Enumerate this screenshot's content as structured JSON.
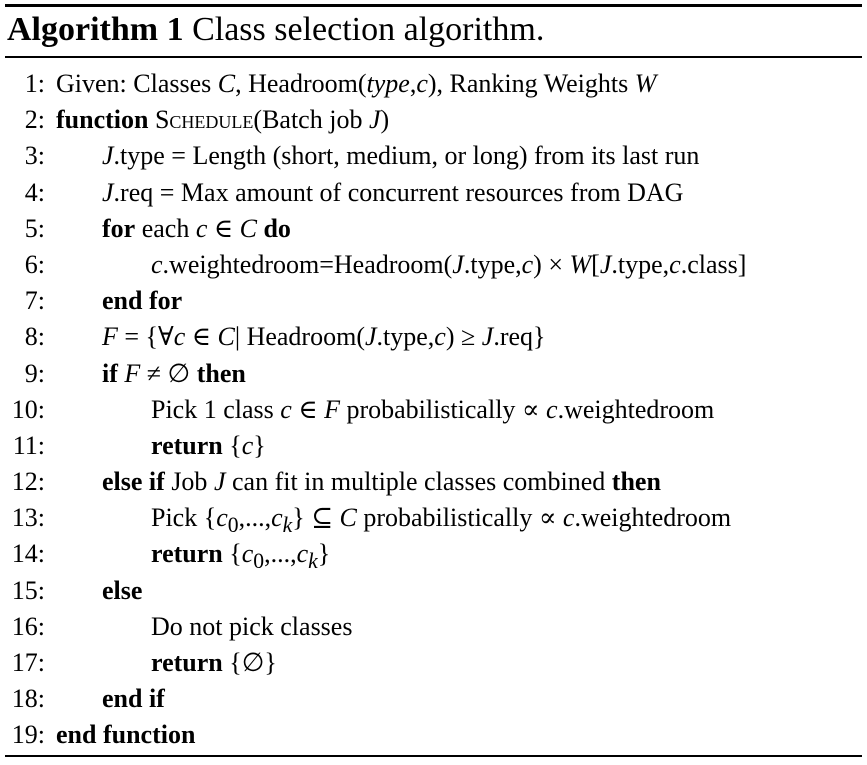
{
  "algorithm": {
    "label": "Algorithm 1",
    "caption": "Class selection algorithm."
  },
  "lines": [
    {
      "n": "1:",
      "text": "Given: Classes C, Headroom(type,c), Ranking Weights W"
    },
    {
      "n": "2:",
      "text": "function SCHEDULE(Batch job J)"
    },
    {
      "n": "3:",
      "text": "J.type = Length (short, medium, or long) from its last run"
    },
    {
      "n": "4:",
      "text": "J.req = Max amount of concurrent resources from DAG"
    },
    {
      "n": "5:",
      "text": "for each c ∈ C do"
    },
    {
      "n": "6:",
      "text": "c.weightedroom=Headroom(J.type,c) × W[J.type,c.class]"
    },
    {
      "n": "7:",
      "text": "end for"
    },
    {
      "n": "8:",
      "text": "F = {∀c ∈ C| Headroom(J.type,c) ≥ J.req}"
    },
    {
      "n": "9:",
      "text": "if F ≠ ∅ then"
    },
    {
      "n": "10:",
      "text": "Pick 1 class c ∈ F probabilistically ∝ c.weightedroom"
    },
    {
      "n": "11:",
      "text": "return {c}"
    },
    {
      "n": "12:",
      "text": "else if Job J can fit in multiple classes combined then"
    },
    {
      "n": "13:",
      "text": "Pick {c0,...,ck} ⊆ C probabilistically ∝ c.weightedroom"
    },
    {
      "n": "14:",
      "text": "return {c0,...,ck}"
    },
    {
      "n": "15:",
      "text": "else"
    },
    {
      "n": "16:",
      "text": "Do not pick classes"
    },
    {
      "n": "17:",
      "text": "return {∅}"
    },
    {
      "n": "18:",
      "text": "end if"
    },
    {
      "n": "19:",
      "text": "end function"
    }
  ]
}
